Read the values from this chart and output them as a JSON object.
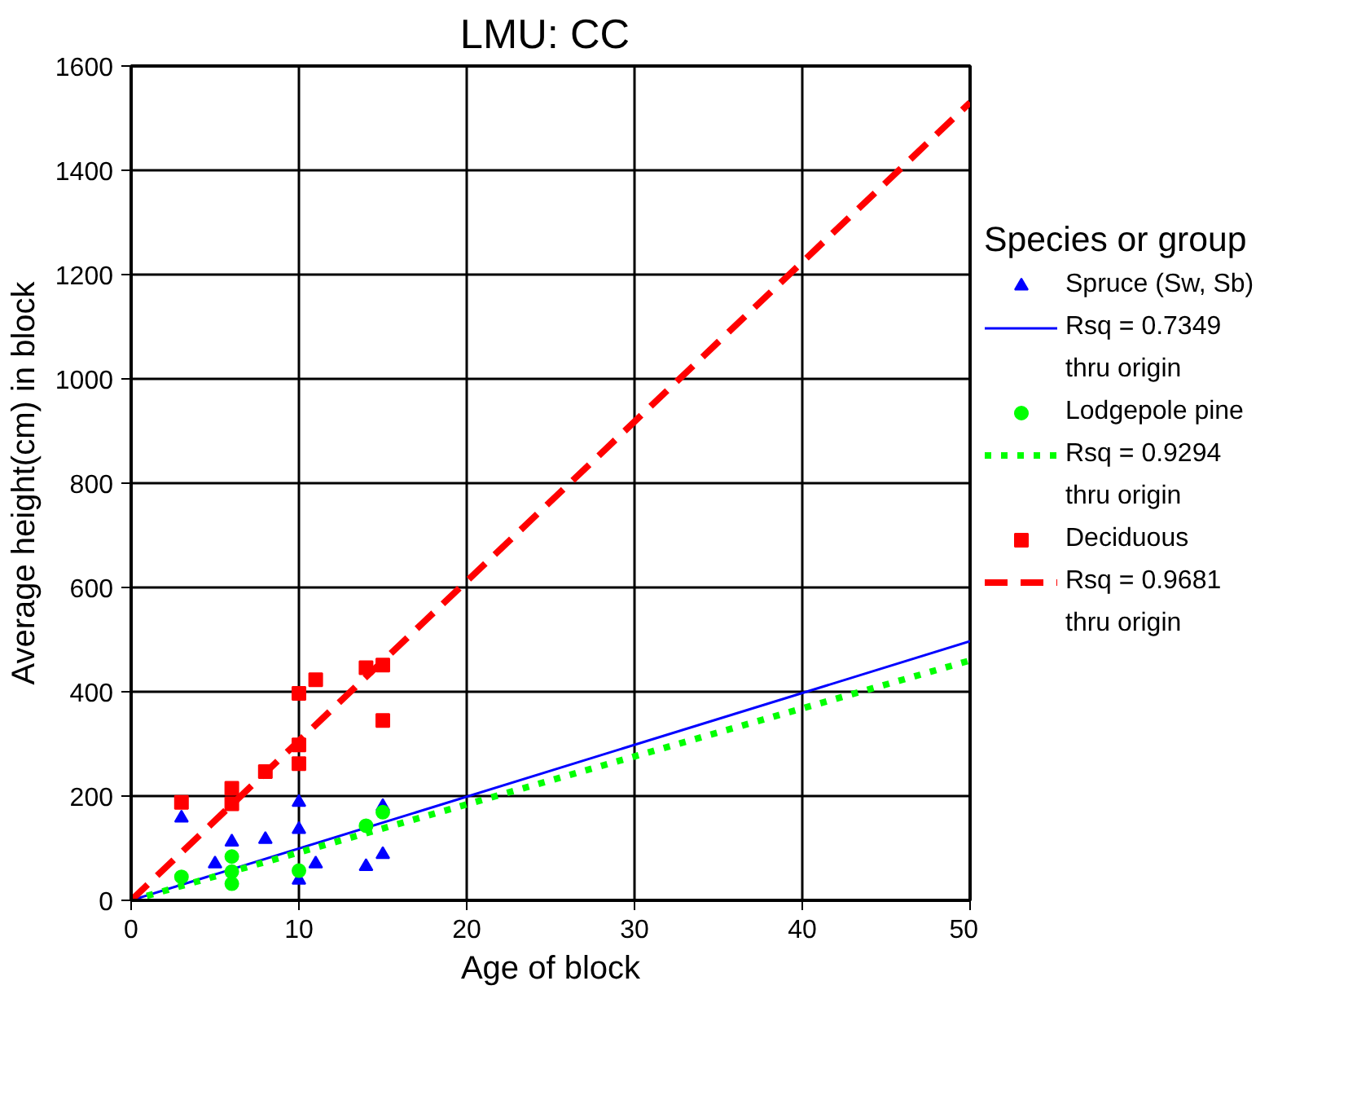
{
  "chart_data": {
    "type": "scatter",
    "title": "LMU:  CC",
    "xlabel": "Age of block",
    "ylabel": "Average height(cm) in block",
    "legend_title": "Species or group",
    "legend": "right",
    "grid": true,
    "xlim": [
      0,
      50
    ],
    "xticks": [
      0,
      10,
      20,
      30,
      40,
      50
    ],
    "ylim": [
      0,
      1600
    ],
    "yticks": [
      0,
      200,
      400,
      600,
      800,
      1000,
      1200,
      1400,
      1600
    ],
    "series": [
      {
        "name": "Spruce (Sw, Sb)",
        "marker": "triangle",
        "color": "#0000ff",
        "x": [
          3,
          5,
          6,
          8,
          10,
          10,
          10,
          11,
          14,
          15,
          15
        ],
        "values": [
          158,
          70,
          112,
          117,
          188,
          136,
          39,
          70,
          65,
          88,
          180
        ]
      },
      {
        "name": "Rsq = 0.7349\nthru origin",
        "type": "line",
        "line_style": "solid",
        "color": "#0000ff",
        "x": [
          0,
          50
        ],
        "values": [
          0,
          497
        ]
      },
      {
        "name": "Lodgepole pine",
        "marker": "circle",
        "color": "#00ff00",
        "x": [
          3,
          6,
          6,
          6,
          10,
          14,
          15
        ],
        "values": [
          45,
          84,
          32,
          55,
          57,
          143,
          169
        ]
      },
      {
        "name": "Rsq = 0.9294\nthru origin",
        "type": "line",
        "line_style": "dotted",
        "color": "#00ff00",
        "x": [
          0,
          50
        ],
        "values": [
          0,
          460
        ]
      },
      {
        "name": "Deciduous",
        "marker": "square",
        "color": "#ff0000",
        "x": [
          3,
          6,
          6,
          8,
          10,
          10,
          10,
          11,
          14,
          15,
          15
        ],
        "values": [
          188,
          215,
          185,
          247,
          397,
          298,
          262,
          423,
          446,
          451,
          345
        ]
      },
      {
        "name": "Rsq = 0.9681\nthru origin",
        "type": "line",
        "line_style": "dashed",
        "color": "#ff0000",
        "x": [
          0,
          50
        ],
        "values": [
          0,
          1530
        ]
      }
    ]
  }
}
